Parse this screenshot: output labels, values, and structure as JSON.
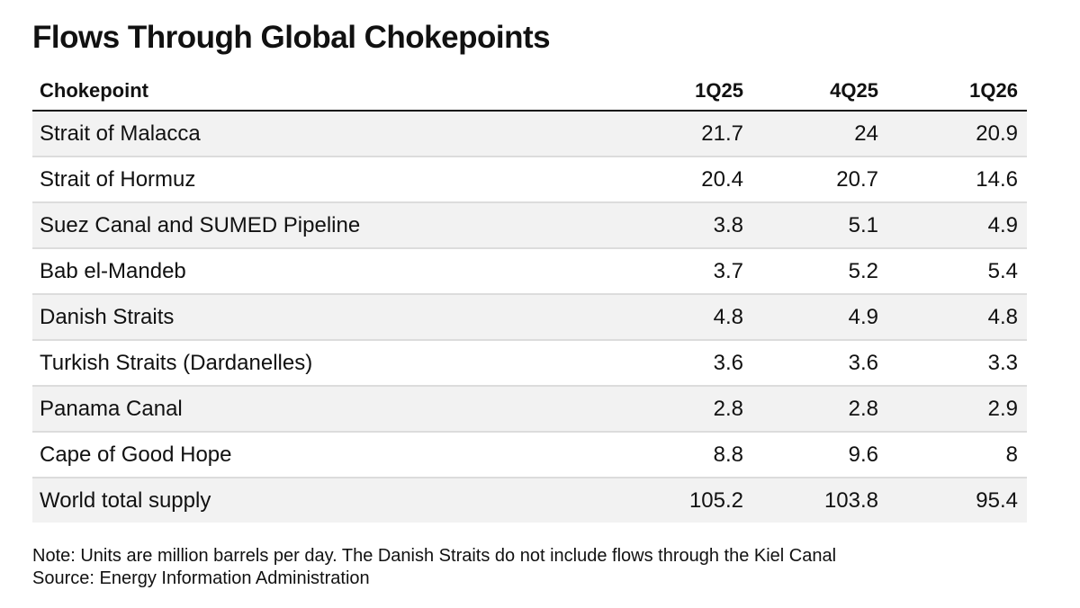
{
  "chart_data": {
    "type": "table",
    "title": "Flows Through Global Chokepoints",
    "columns": [
      "Chokepoint",
      "1Q25",
      "4Q25",
      "1Q26"
    ],
    "rows": [
      {
        "name": "Strait of Malacca",
        "values": [
          "21.7",
          "24",
          "20.9"
        ]
      },
      {
        "name": "Strait of Hormuz",
        "values": [
          "20.4",
          "20.7",
          "14.6"
        ]
      },
      {
        "name": "Suez Canal and SUMED Pipeline",
        "values": [
          "3.8",
          "5.1",
          "4.9"
        ]
      },
      {
        "name": "Bab el-Mandeb",
        "values": [
          "3.7",
          "5.2",
          "5.4"
        ]
      },
      {
        "name": "Danish Straits",
        "values": [
          "4.8",
          "4.9",
          "4.8"
        ]
      },
      {
        "name": "Turkish Straits (Dardanelles)",
        "values": [
          "3.6",
          "3.6",
          "3.3"
        ]
      },
      {
        "name": "Panama Canal",
        "values": [
          "2.8",
          "2.8",
          "2.9"
        ]
      },
      {
        "name": "Cape of Good Hope",
        "values": [
          "8.8",
          "9.6",
          "8"
        ]
      },
      {
        "name": "World total supply",
        "values": [
          "105.2",
          "103.8",
          "95.4"
        ]
      }
    ],
    "note": "Note: Units are million barrels per day. The Danish Straits do not include flows through the Kiel Canal",
    "source": "Source: Energy Information Administration",
    "colors": {
      "text": "#111111",
      "row_shade": "#f2f2f2",
      "row_divider": "#dcdcdc",
      "header_rule": "#111111"
    }
  }
}
